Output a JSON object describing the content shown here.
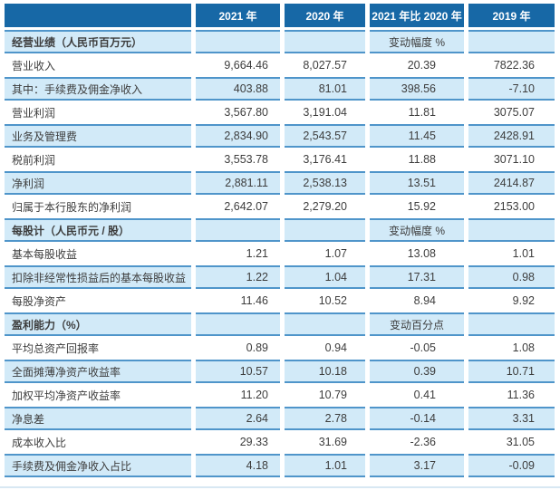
{
  "colors": {
    "header_bg": "#1768a6",
    "header_text": "#ffffff",
    "row_blue": "#d2eaf8",
    "row_border": "#4f95ca",
    "text": "#3d3d3d",
    "page_bg": "#ffffff"
  },
  "table": {
    "columns": [
      "",
      "2021 年",
      "2020 年",
      "2021 年比 2020 年",
      "2019 年"
    ],
    "rows": [
      {
        "type": "section",
        "label": "经营业绩（人民币百万元）",
        "note": "变动幅度 %"
      },
      {
        "type": "data",
        "shade": "white",
        "label": "营业收入",
        "values": [
          "9,664.46",
          "8,027.57",
          "20.39",
          "7822.36"
        ]
      },
      {
        "type": "data",
        "shade": "blue",
        "label": "其中：手续费及佣金净收入",
        "values": [
          "403.88",
          "81.01",
          "398.56",
          "-7.10"
        ]
      },
      {
        "type": "data",
        "shade": "white",
        "label": "营业利润",
        "values": [
          "3,567.80",
          "3,191.04",
          "11.81",
          "3075.07"
        ]
      },
      {
        "type": "data",
        "shade": "blue",
        "label": "业务及管理费",
        "values": [
          "2,834.90",
          "2,543.57",
          "11.45",
          "2428.91"
        ]
      },
      {
        "type": "data",
        "shade": "white",
        "label": "税前利润",
        "values": [
          "3,553.78",
          "3,176.41",
          "11.88",
          "3071.10"
        ]
      },
      {
        "type": "data",
        "shade": "blue",
        "label": "净利润",
        "values": [
          "2,881.11",
          "2,538.13",
          "13.51",
          "2414.87"
        ]
      },
      {
        "type": "data",
        "shade": "white",
        "label": "归属于本行股东的净利润",
        "values": [
          "2,642.07",
          "2,279.20",
          "15.92",
          "2153.00"
        ]
      },
      {
        "type": "section",
        "label": "每股计（人民币元 / 股）",
        "note": "变动幅度 %"
      },
      {
        "type": "data",
        "shade": "white",
        "label": "基本每股收益",
        "values": [
          "1.21",
          "1.07",
          "13.08",
          "1.01"
        ]
      },
      {
        "type": "data",
        "shade": "blue",
        "label": "扣除非经常性损益后的基本每股收益",
        "values": [
          "1.22",
          "1.04",
          "17.31",
          "0.98"
        ]
      },
      {
        "type": "data",
        "shade": "white",
        "label": "每股净资产",
        "values": [
          "11.46",
          "10.52",
          "8.94",
          "9.92"
        ]
      },
      {
        "type": "section",
        "label": "盈利能力（%）",
        "note": "变动百分点"
      },
      {
        "type": "data",
        "shade": "white",
        "label": "平均总资产回报率",
        "values": [
          "0.89",
          "0.94",
          "-0.05",
          "1.08"
        ]
      },
      {
        "type": "data",
        "shade": "blue",
        "label": "全面摊薄净资产收益率",
        "values": [
          "10.57",
          "10.18",
          "0.39",
          "10.71"
        ]
      },
      {
        "type": "data",
        "shade": "white",
        "label": "加权平均净资产收益率",
        "values": [
          "11.20",
          "10.79",
          "0.41",
          "11.36"
        ]
      },
      {
        "type": "data",
        "shade": "blue",
        "label": "净息差",
        "values": [
          "2.64",
          "2.78",
          "-0.14",
          "3.31"
        ]
      },
      {
        "type": "data",
        "shade": "white",
        "label": "成本收入比",
        "values": [
          "29.33",
          "31.69",
          "-2.36",
          "31.05"
        ]
      },
      {
        "type": "data",
        "shade": "blue",
        "label": "手续费及佣金净收入占比",
        "values": [
          "4.18",
          "1.01",
          "3.17",
          "-0.09"
        ]
      }
    ]
  }
}
